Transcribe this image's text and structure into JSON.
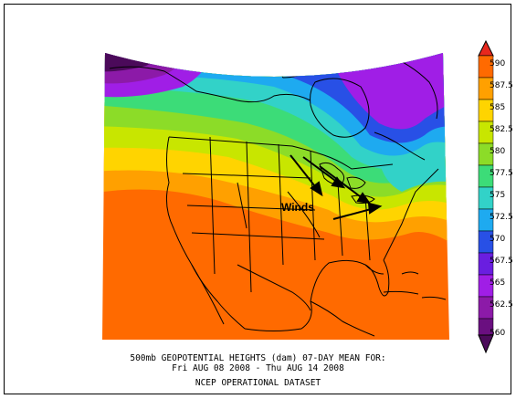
{
  "map": {
    "annotation": "Winds",
    "colorbar_labels": [
      "590",
      "587.5",
      "585",
      "582.5",
      "580",
      "577.5",
      "575",
      "572.5",
      "570",
      "567.5",
      "565",
      "562.5",
      "560"
    ],
    "colors": {
      "c590": "#e8281e",
      "c5875": "#ff6a00",
      "c585": "#ffa000",
      "c5825": "#ffd400",
      "c580": "#c8e600",
      "c5775": "#8cdc28",
      "c575": "#3cdc78",
      "c5725": "#32d2c8",
      "c570": "#1eaaf0",
      "c5675": "#2850e6",
      "c565": "#a01ee6",
      "c5625": "#8c1aa8",
      "c560": "#4b0a5a"
    }
  },
  "caption": {
    "line1": "500mb GEOPOTENTIAL HEIGHTS (dam)   07-DAY MEAN FOR:",
    "line2": "Fri AUG 08 2008 - Thu AUG 14 2008",
    "line3": "NCEP OPERATIONAL DATASET"
  }
}
